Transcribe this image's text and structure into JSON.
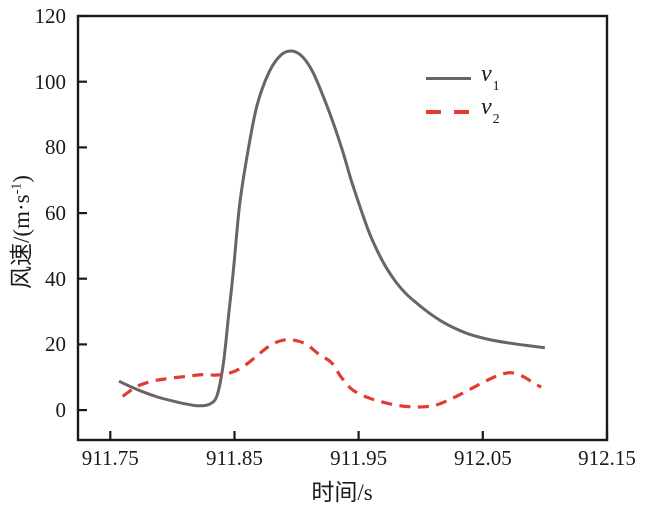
{
  "chart_data": {
    "type": "line",
    "title": "",
    "xlabel": "时间/s",
    "ylabel": "风速/(m·s⁻¹)",
    "ylabel_pre": "风速/(m·s",
    "ylabel_sup": "-1",
    "ylabel_post": ")",
    "xlim": [
      911.724,
      912.15
    ],
    "ylim": [
      -9.1,
      120
    ],
    "xticks": [
      911.75,
      911.85,
      911.95,
      912.05,
      912.15
    ],
    "xtick_labels": [
      "911.75",
      "911.85",
      "911.95",
      "912.05",
      "912.15"
    ],
    "yticks": [
      0,
      20,
      40,
      60,
      80,
      100,
      120
    ],
    "ytick_labels": [
      "0",
      "20",
      "40",
      "60",
      "80",
      "100",
      "120"
    ],
    "grid": false,
    "legend_position": "upper-right-inside",
    "axis_color": "#1a1a1a",
    "series": [
      {
        "name": "v1",
        "label_base": "v",
        "label_sub": "1",
        "color": "#6c6461",
        "style": "solid",
        "width": 3,
        "points": [
          [
            911.757,
            8.8
          ],
          [
            911.766,
            7.2
          ],
          [
            911.776,
            5.6
          ],
          [
            911.788,
            4.0
          ],
          [
            911.8,
            2.8
          ],
          [
            911.812,
            1.8
          ],
          [
            911.821,
            1.3
          ],
          [
            911.83,
            1.8
          ],
          [
            911.836,
            4.5
          ],
          [
            911.841,
            14.0
          ],
          [
            911.845,
            28.0
          ],
          [
            911.849,
            42.0
          ],
          [
            911.854,
            62.0
          ],
          [
            911.86,
            77.0
          ],
          [
            911.868,
            92.5
          ],
          [
            911.878,
            103.0
          ],
          [
            911.888,
            108.3
          ],
          [
            911.897,
            109.3
          ],
          [
            911.905,
            107.5
          ],
          [
            911.913,
            103.0
          ],
          [
            911.921,
            96.0
          ],
          [
            911.929,
            88.0
          ],
          [
            911.937,
            79.0
          ],
          [
            911.944,
            70.0
          ],
          [
            911.951,
            62.0
          ],
          [
            911.958,
            54.5
          ],
          [
            911.965,
            48.5
          ],
          [
            911.972,
            43.5
          ],
          [
            911.98,
            39.0
          ],
          [
            911.988,
            35.5
          ],
          [
            911.997,
            32.5
          ],
          [
            912.007,
            29.5
          ],
          [
            912.017,
            27.0
          ],
          [
            912.027,
            25.0
          ],
          [
            912.04,
            23.0
          ],
          [
            912.055,
            21.5
          ],
          [
            912.07,
            20.5
          ],
          [
            912.085,
            19.7
          ],
          [
            912.1,
            19.0
          ]
        ]
      },
      {
        "name": "v2",
        "label_base": "v",
        "label_sub": "2",
        "color": "#e13b34",
        "style": "dashed",
        "width": 3.2,
        "points": [
          [
            911.76,
            4.2
          ],
          [
            911.772,
            7.3
          ],
          [
            911.784,
            8.8
          ],
          [
            911.796,
            9.6
          ],
          [
            911.812,
            10.3
          ],
          [
            911.824,
            10.8
          ],
          [
            911.836,
            10.7
          ],
          [
            911.848,
            11.5
          ],
          [
            911.858,
            13.5
          ],
          [
            911.868,
            16.5
          ],
          [
            911.878,
            19.5
          ],
          [
            911.888,
            21.2
          ],
          [
            911.898,
            21.3
          ],
          [
            911.908,
            20.0
          ],
          [
            911.918,
            17.0
          ],
          [
            911.928,
            14.5
          ],
          [
            911.936,
            10.0
          ],
          [
            911.944,
            6.5
          ],
          [
            911.953,
            4.5
          ],
          [
            911.962,
            3.2
          ],
          [
            911.972,
            2.2
          ],
          [
            911.982,
            1.4
          ],
          [
            911.992,
            1.0
          ],
          [
            912.002,
            1.0
          ],
          [
            912.012,
            1.5
          ],
          [
            912.022,
            3.0
          ],
          [
            912.032,
            4.8
          ],
          [
            912.042,
            6.8
          ],
          [
            912.052,
            8.8
          ],
          [
            912.062,
            10.5
          ],
          [
            912.072,
            11.4
          ],
          [
            912.082,
            10.3
          ],
          [
            912.09,
            8.5
          ],
          [
            912.097,
            7.0
          ]
        ]
      }
    ]
  }
}
